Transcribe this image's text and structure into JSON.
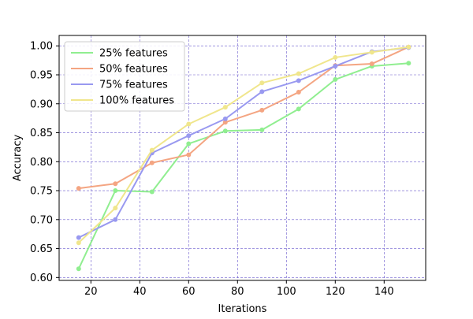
{
  "chart_data": {
    "type": "line",
    "title": "",
    "xlabel": "Iterations",
    "ylabel": "Accuracy",
    "xlim": [
      7,
      157
    ],
    "ylim": [
      0.595,
      1.018
    ],
    "xticks": [
      20,
      40,
      60,
      80,
      100,
      120,
      140
    ],
    "yticks": [
      0.6,
      0.65,
      0.7,
      0.75,
      0.8,
      0.85,
      0.9,
      0.95,
      1.0
    ],
    "grid": true,
    "grid_color": "#6a5acd",
    "legend_position": "top-left",
    "x": [
      15,
      30,
      45,
      60,
      75,
      90,
      105,
      120,
      135,
      150
    ],
    "series": [
      {
        "name": "25% features",
        "color": "#90ee90",
        "values": [
          0.615,
          0.75,
          0.748,
          0.831,
          0.853,
          0.855,
          0.891,
          0.942,
          0.965,
          0.97
        ]
      },
      {
        "name": "50% features",
        "color": "#f4a582",
        "values": [
          0.754,
          0.762,
          0.798,
          0.812,
          0.868,
          0.889,
          0.92,
          0.966,
          0.969,
          0.998
        ]
      },
      {
        "name": "75% features",
        "color": "#9999f0",
        "values": [
          0.669,
          0.7,
          0.815,
          0.845,
          0.874,
          0.921,
          0.94,
          0.965,
          0.99,
          0.997
        ]
      },
      {
        "name": "100% features",
        "color": "#f0e68c",
        "values": [
          0.66,
          0.72,
          0.82,
          0.865,
          0.894,
          0.936,
          0.952,
          0.98,
          0.989,
          0.998
        ]
      }
    ]
  }
}
